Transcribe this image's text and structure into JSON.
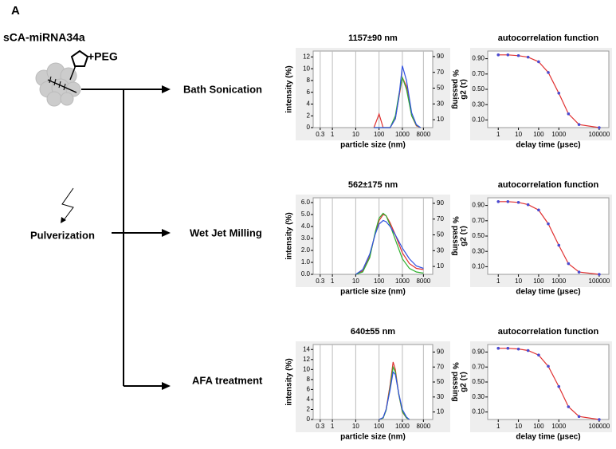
{
  "panel_label": "A",
  "diagram": {
    "compound": "sCA-miRNA34a",
    "modifier": "+PEG",
    "process": "Pulverization",
    "methods": [
      "Bath Sonication",
      "Wet Jet Milling",
      "AFA treatment"
    ]
  },
  "chart_data": [
    {
      "type": "line",
      "title": "1157±90 nm",
      "xlabel": "particle size (nm)",
      "ylabel": "intensity (%)",
      "y2label": "% passing",
      "log_x": true,
      "grid": true,
      "xlim": [
        0.15,
        20000
      ],
      "xticks": [
        0.3,
        1,
        10,
        100,
        1000,
        8000
      ],
      "ylim": [
        0,
        13
      ],
      "yticks": [
        0,
        2,
        4,
        6,
        8,
        10,
        12
      ],
      "y2lim": [
        0,
        97
      ],
      "y2ticks": [
        10,
        30,
        50,
        70,
        90
      ],
      "x": [
        60,
        100,
        150,
        300,
        500,
        700,
        1000,
        1500,
        2500,
        4000,
        6000
      ],
      "series": [
        {
          "color": "#e03030",
          "values": [
            0,
            2.3,
            0,
            0,
            1.5,
            5,
            8.5,
            7,
            2,
            0.3,
            0
          ]
        },
        {
          "color": "#30b030",
          "values": [
            0,
            0,
            0,
            0,
            2,
            5.5,
            8.5,
            6.5,
            2,
            0.4,
            0
          ]
        },
        {
          "color": "#3050e0",
          "values": [
            0,
            0,
            0,
            0,
            1.5,
            5,
            10.5,
            8,
            2.5,
            0.5,
            0
          ]
        }
      ]
    },
    {
      "type": "line",
      "title": "autocorrelation function",
      "xlabel": "delay time (μsec)",
      "ylabel": "g2 (τ)",
      "log_x": true,
      "xlim": [
        0.3,
        300000
      ],
      "xticks": [
        1,
        10,
        100,
        1000,
        100000
      ],
      "ylim": [
        0,
        1
      ],
      "yticks": [
        {
          "value": 0.1,
          "label": "0.10"
        },
        {
          "value": 0.3,
          "label": "0.30"
        },
        {
          "value": 0.5,
          "label": "0.50"
        },
        {
          "value": 0.7,
          "label": "0.70"
        },
        {
          "value": 0.9,
          "label": "0.90"
        }
      ],
      "x": [
        1,
        3,
        10,
        30,
        100,
        300,
        1000,
        3000,
        10000,
        100000
      ],
      "series": [
        {
          "color": "#e03030",
          "marker_color": "#4a4ad0",
          "values": [
            0.95,
            0.95,
            0.94,
            0.92,
            0.86,
            0.72,
            0.45,
            0.18,
            0.04,
            0
          ]
        }
      ]
    },
    {
      "type": "line",
      "title": "562±175 nm",
      "xlabel": "particle size (nm)",
      "ylabel": "intensity (%)",
      "y2label": "% passing",
      "log_x": true,
      "grid": true,
      "xlim": [
        0.15,
        20000
      ],
      "xticks": [
        0.3,
        1,
        10,
        100,
        1000,
        8000
      ],
      "ylim": [
        0,
        6.4
      ],
      "yticks": [
        {
          "value": 0,
          "label": "0.0"
        },
        {
          "value": 1,
          "label": "1.0"
        },
        {
          "value": 2,
          "label": "2.0"
        },
        {
          "value": 3,
          "label": "3.0"
        },
        {
          "value": 4,
          "label": "4.0"
        },
        {
          "value": 5,
          "label": "5.0"
        },
        {
          "value": 6,
          "label": "6.0"
        }
      ],
      "y2lim": [
        0,
        97
      ],
      "y2ticks": [
        10,
        30,
        50,
        70,
        90
      ],
      "x": [
        10,
        20,
        40,
        70,
        100,
        150,
        200,
        300,
        500,
        1000,
        2000,
        4000,
        8000
      ],
      "series": [
        {
          "color": "#e03030",
          "values": [
            0,
            0.3,
            1.5,
            3.5,
            4.5,
            5,
            4.9,
            4.3,
            3.3,
            1.8,
            0.9,
            0.5,
            0.4
          ]
        },
        {
          "color": "#30b030",
          "values": [
            0,
            0.2,
            1.4,
            3.6,
            4.7,
            5.1,
            4.9,
            4.1,
            2.9,
            1.3,
            0.5,
            0.2,
            0.1
          ]
        },
        {
          "color": "#3050e0",
          "values": [
            0,
            0.4,
            1.7,
            3.4,
            4.2,
            4.5,
            4.4,
            4,
            3.3,
            2.2,
            1.3,
            0.7,
            0.5
          ]
        }
      ]
    },
    {
      "type": "line",
      "title": "autocorrelation function",
      "xlabel": "delay time (μsec)",
      "ylabel": "g2 (τ)",
      "log_x": true,
      "xlim": [
        0.3,
        300000
      ],
      "xticks": [
        1,
        10,
        100,
        1000,
        100000
      ],
      "ylim": [
        0,
        1
      ],
      "yticks": [
        {
          "value": 0.1,
          "label": "0.10"
        },
        {
          "value": 0.3,
          "label": "0.30"
        },
        {
          "value": 0.5,
          "label": "0.50"
        },
        {
          "value": 0.7,
          "label": "0.70"
        },
        {
          "value": 0.9,
          "label": "0.90"
        }
      ],
      "x": [
        1,
        3,
        10,
        30,
        100,
        300,
        1000,
        3000,
        10000,
        100000
      ],
      "series": [
        {
          "color": "#e03030",
          "marker_color": "#4a4ad0",
          "values": [
            0.95,
            0.95,
            0.94,
            0.91,
            0.84,
            0.66,
            0.38,
            0.14,
            0.03,
            0
          ]
        }
      ]
    },
    {
      "type": "line",
      "title": "640±55 nm",
      "xlabel": "particle size (nm)",
      "ylabel": "intensity (%)",
      "y2label": "% passing",
      "log_x": true,
      "grid": true,
      "xlim": [
        0.15,
        20000
      ],
      "xticks": [
        0.3,
        1,
        10,
        100,
        1000,
        8000
      ],
      "ylim": [
        0,
        15
      ],
      "yticks": [
        0,
        2,
        4,
        6,
        8,
        10,
        12,
        14
      ],
      "y2lim": [
        0,
        100
      ],
      "y2ticks": [
        10,
        30,
        50,
        70,
        90
      ],
      "x": [
        100,
        150,
        200,
        300,
        400,
        500,
        700,
        1000,
        1500,
        2000
      ],
      "series": [
        {
          "color": "#e03030",
          "values": [
            0,
            0.3,
            2,
            7,
            11.5,
            10,
            5,
            1.5,
            0.3,
            0
          ]
        },
        {
          "color": "#30b030",
          "values": [
            0,
            0.3,
            1.8,
            6.5,
            10.5,
            9.5,
            5,
            1.6,
            0.3,
            0
          ]
        },
        {
          "color": "#3050e0",
          "values": [
            0,
            0.4,
            2,
            6,
            9.5,
            9,
            5.2,
            2,
            0.5,
            0
          ]
        }
      ]
    },
    {
      "type": "line",
      "title": "autocorrelation function",
      "xlabel": "delay time (μsec)",
      "ylabel": "g2 (τ)",
      "log_x": true,
      "xlim": [
        0.3,
        300000
      ],
      "xticks": [
        1,
        10,
        100,
        1000,
        100000
      ],
      "ylim": [
        0,
        1
      ],
      "yticks": [
        {
          "value": 0.1,
          "label": "0.10"
        },
        {
          "value": 0.3,
          "label": "0.30"
        },
        {
          "value": 0.5,
          "label": "0.50"
        },
        {
          "value": 0.7,
          "label": "0.70"
        },
        {
          "value": 0.9,
          "label": "0.90"
        }
      ],
      "x": [
        1,
        3,
        10,
        30,
        100,
        300,
        1000,
        3000,
        10000,
        100000
      ],
      "series": [
        {
          "color": "#e03030",
          "marker_color": "#4a4ad0",
          "values": [
            0.95,
            0.95,
            0.94,
            0.92,
            0.86,
            0.71,
            0.44,
            0.17,
            0.04,
            0
          ]
        }
      ]
    }
  ]
}
